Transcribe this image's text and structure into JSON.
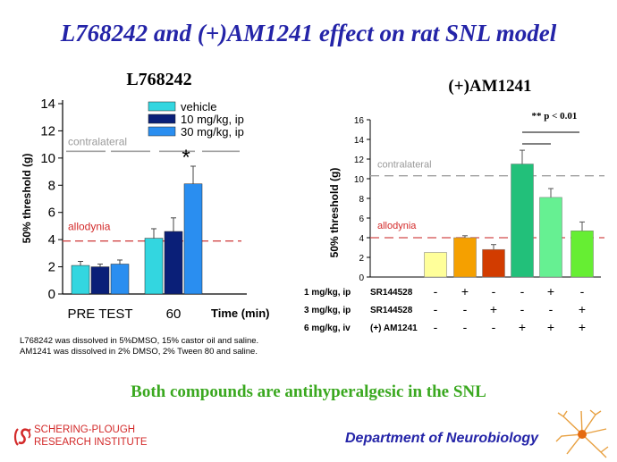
{
  "slide": {
    "title": "L768242 and (+)AM1241 effect on rat SNL model",
    "notes": [
      "L768242 was dissolved in 5%DMSO, 15% castor oil and saline.",
      "AM1241 was dissolved in 2% DMSO, 2% Tween 80 and saline."
    ],
    "conclusion": "Both compounds are antihyperalgesic in the SNL",
    "organization": [
      "SCHERING-PLOUGH",
      "RESEARCH INSTITUTE"
    ],
    "department": "Department of Neurobiology"
  },
  "colors": {
    "title": "#2424a8",
    "conclusion": "#3aa81f",
    "organization": "#d32a2a",
    "allodynia_line": "#d24a4a",
    "contralateral_line": "#a0a0a0"
  },
  "chart_data": [
    {
      "type": "bar",
      "title": "L768242",
      "ylabel": "50% threshold (g)",
      "xlabel": "Time (min)",
      "ylim": [
        0,
        14
      ],
      "yticks": [
        0,
        2,
        4,
        6,
        8,
        10,
        12,
        14
      ],
      "categories": [
        "PRE TEST",
        "60"
      ],
      "series": [
        {
          "name": "vehicle",
          "color": "#33d6e0",
          "values": [
            2.1,
            4.1
          ],
          "errors": [
            0.3,
            0.7
          ]
        },
        {
          "name": "10 mg/kg, ip",
          "color": "#0a1f78",
          "values": [
            2.0,
            4.6
          ],
          "errors": [
            0.2,
            1.0
          ]
        },
        {
          "name": "30 mg/kg, ip",
          "color": "#2a8ef0",
          "values": [
            2.2,
            8.1
          ],
          "errors": [
            0.3,
            1.3
          ]
        }
      ],
      "reference_lines": [
        {
          "label": "contralateral",
          "value": 10.3
        },
        {
          "label": "allodynia",
          "value": 3.9
        }
      ],
      "annotations": [
        "*"
      ],
      "legend": "top-right"
    },
    {
      "type": "bar",
      "title": "(+)AM1241",
      "ylabel": "50% threshold (g)",
      "ylim": [
        0,
        16
      ],
      "yticks": [
        0,
        2,
        4,
        6,
        8,
        10,
        12,
        14,
        16
      ],
      "groups": 6,
      "values": [
        2.5,
        4.0,
        2.8,
        11.5,
        8.1,
        4.7
      ],
      "errors": [
        0,
        0.2,
        0.5,
        1.4,
        0.9,
        0.9
      ],
      "colors": [
        "#ffff9a",
        "#f5a000",
        "#d23c00",
        "#22c07a",
        "#66f092",
        "#66ee33"
      ],
      "reference_lines": [
        {
          "label": "contralateral",
          "value": 10.3
        },
        {
          "label": "allodynia",
          "value": 4.0
        }
      ],
      "significance": "** p < 0.01",
      "treatment_table": [
        {
          "dose": "1 mg/kg, ip",
          "drug": "SR144528",
          "signs": [
            "-",
            "+",
            "-",
            "-",
            "+",
            "-"
          ]
        },
        {
          "dose": "3 mg/kg, ip",
          "drug": "SR144528",
          "signs": [
            "-",
            "-",
            "+",
            "-",
            "-",
            "+"
          ]
        },
        {
          "dose": "6 mg/kg, iv",
          "drug": "(+) AM1241",
          "signs": [
            "-",
            "-",
            "-",
            "+",
            "+",
            "+"
          ]
        }
      ]
    }
  ]
}
